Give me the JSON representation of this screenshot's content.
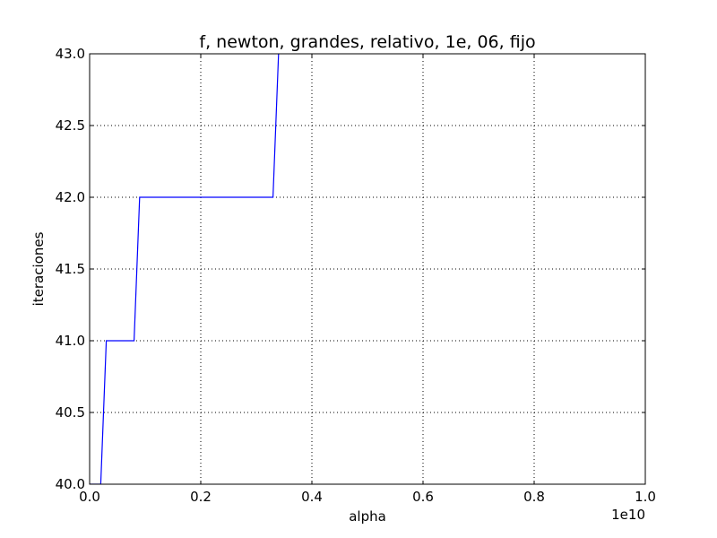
{
  "chart_data": {
    "type": "line",
    "title": "f, newton, grandes, relativo, 1e, 06, fijo",
    "xlabel": "alpha",
    "ylabel": "iteraciones",
    "x_offset_label": "1e10",
    "xlim": [
      0,
      1.0
    ],
    "ylim": [
      40.0,
      43.0
    ],
    "x_ticks": [
      0.0,
      0.2,
      0.4,
      0.6,
      0.8,
      1.0
    ],
    "x_tick_labels": [
      "0.0",
      "0.2",
      "0.4",
      "0.6",
      "0.8",
      "1.0"
    ],
    "y_ticks": [
      40.0,
      40.5,
      41.0,
      41.5,
      42.0,
      42.5,
      43.0
    ],
    "y_tick_labels": [
      "40.0",
      "40.5",
      "41.0",
      "41.5",
      "42.0",
      "42.5",
      "43.0"
    ],
    "grid": true,
    "series": [
      {
        "color": "#0000ff",
        "x": [
          0.0,
          0.02,
          0.03,
          0.08,
          0.09,
          0.33,
          0.34
        ],
        "y": [
          40.0,
          40.0,
          41.0,
          41.0,
          42.0,
          42.0,
          43.0
        ]
      }
    ]
  }
}
